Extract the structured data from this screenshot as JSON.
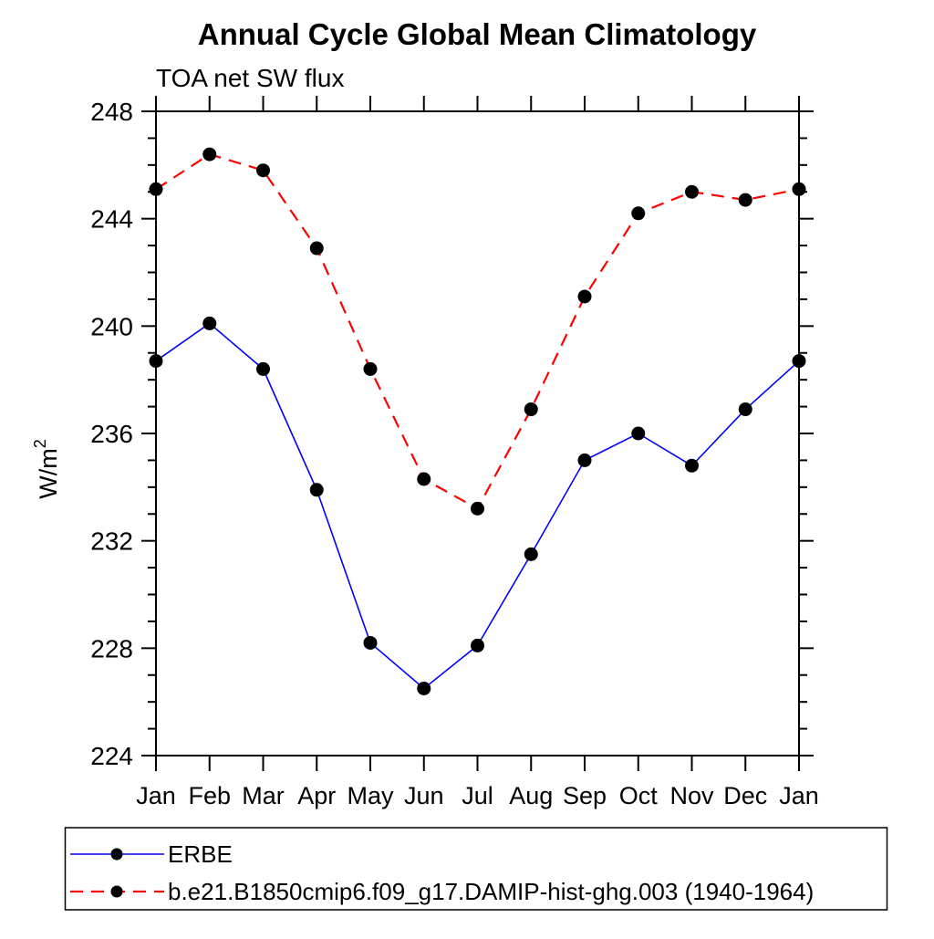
{
  "chart_data": {
    "type": "line",
    "title": "Annual Cycle Global Mean Climatology",
    "subtitle": "TOA net SW flux",
    "ylabel_base": "W/m",
    "ylabel_exponent": "2",
    "x_categories": [
      "Jan",
      "Feb",
      "Mar",
      "Apr",
      "May",
      "Jun",
      "Jul",
      "Aug",
      "Sep",
      "Oct",
      "Nov",
      "Dec",
      "Jan"
    ],
    "ylim": [
      224,
      248
    ],
    "ytick_major": [
      224,
      228,
      232,
      236,
      240,
      244,
      248
    ],
    "ytick_minor_step": 1,
    "grid": false,
    "axis_color": "#000000",
    "marker_color": "#000000",
    "series": [
      {
        "name": "ERBE",
        "color": "#0000ff",
        "line_style": "solid",
        "marker": "filled-circle",
        "values": [
          238.7,
          240.1,
          238.4,
          233.9,
          228.2,
          226.5,
          228.1,
          231.5,
          235.0,
          236.0,
          234.8,
          236.9,
          238.7
        ]
      },
      {
        "name": "b.e21.B1850cmip6.f09_g17.DAMIP-hist-ghg.003 (1940-1964)",
        "color": "#ff0000",
        "line_style": "dashed",
        "marker": "filled-circle",
        "values": [
          245.1,
          246.4,
          245.8,
          242.9,
          238.4,
          234.3,
          233.2,
          236.9,
          241.1,
          244.2,
          245.0,
          244.7,
          245.1
        ]
      }
    ],
    "legend": {
      "position": "bottom-left",
      "border": true
    }
  }
}
